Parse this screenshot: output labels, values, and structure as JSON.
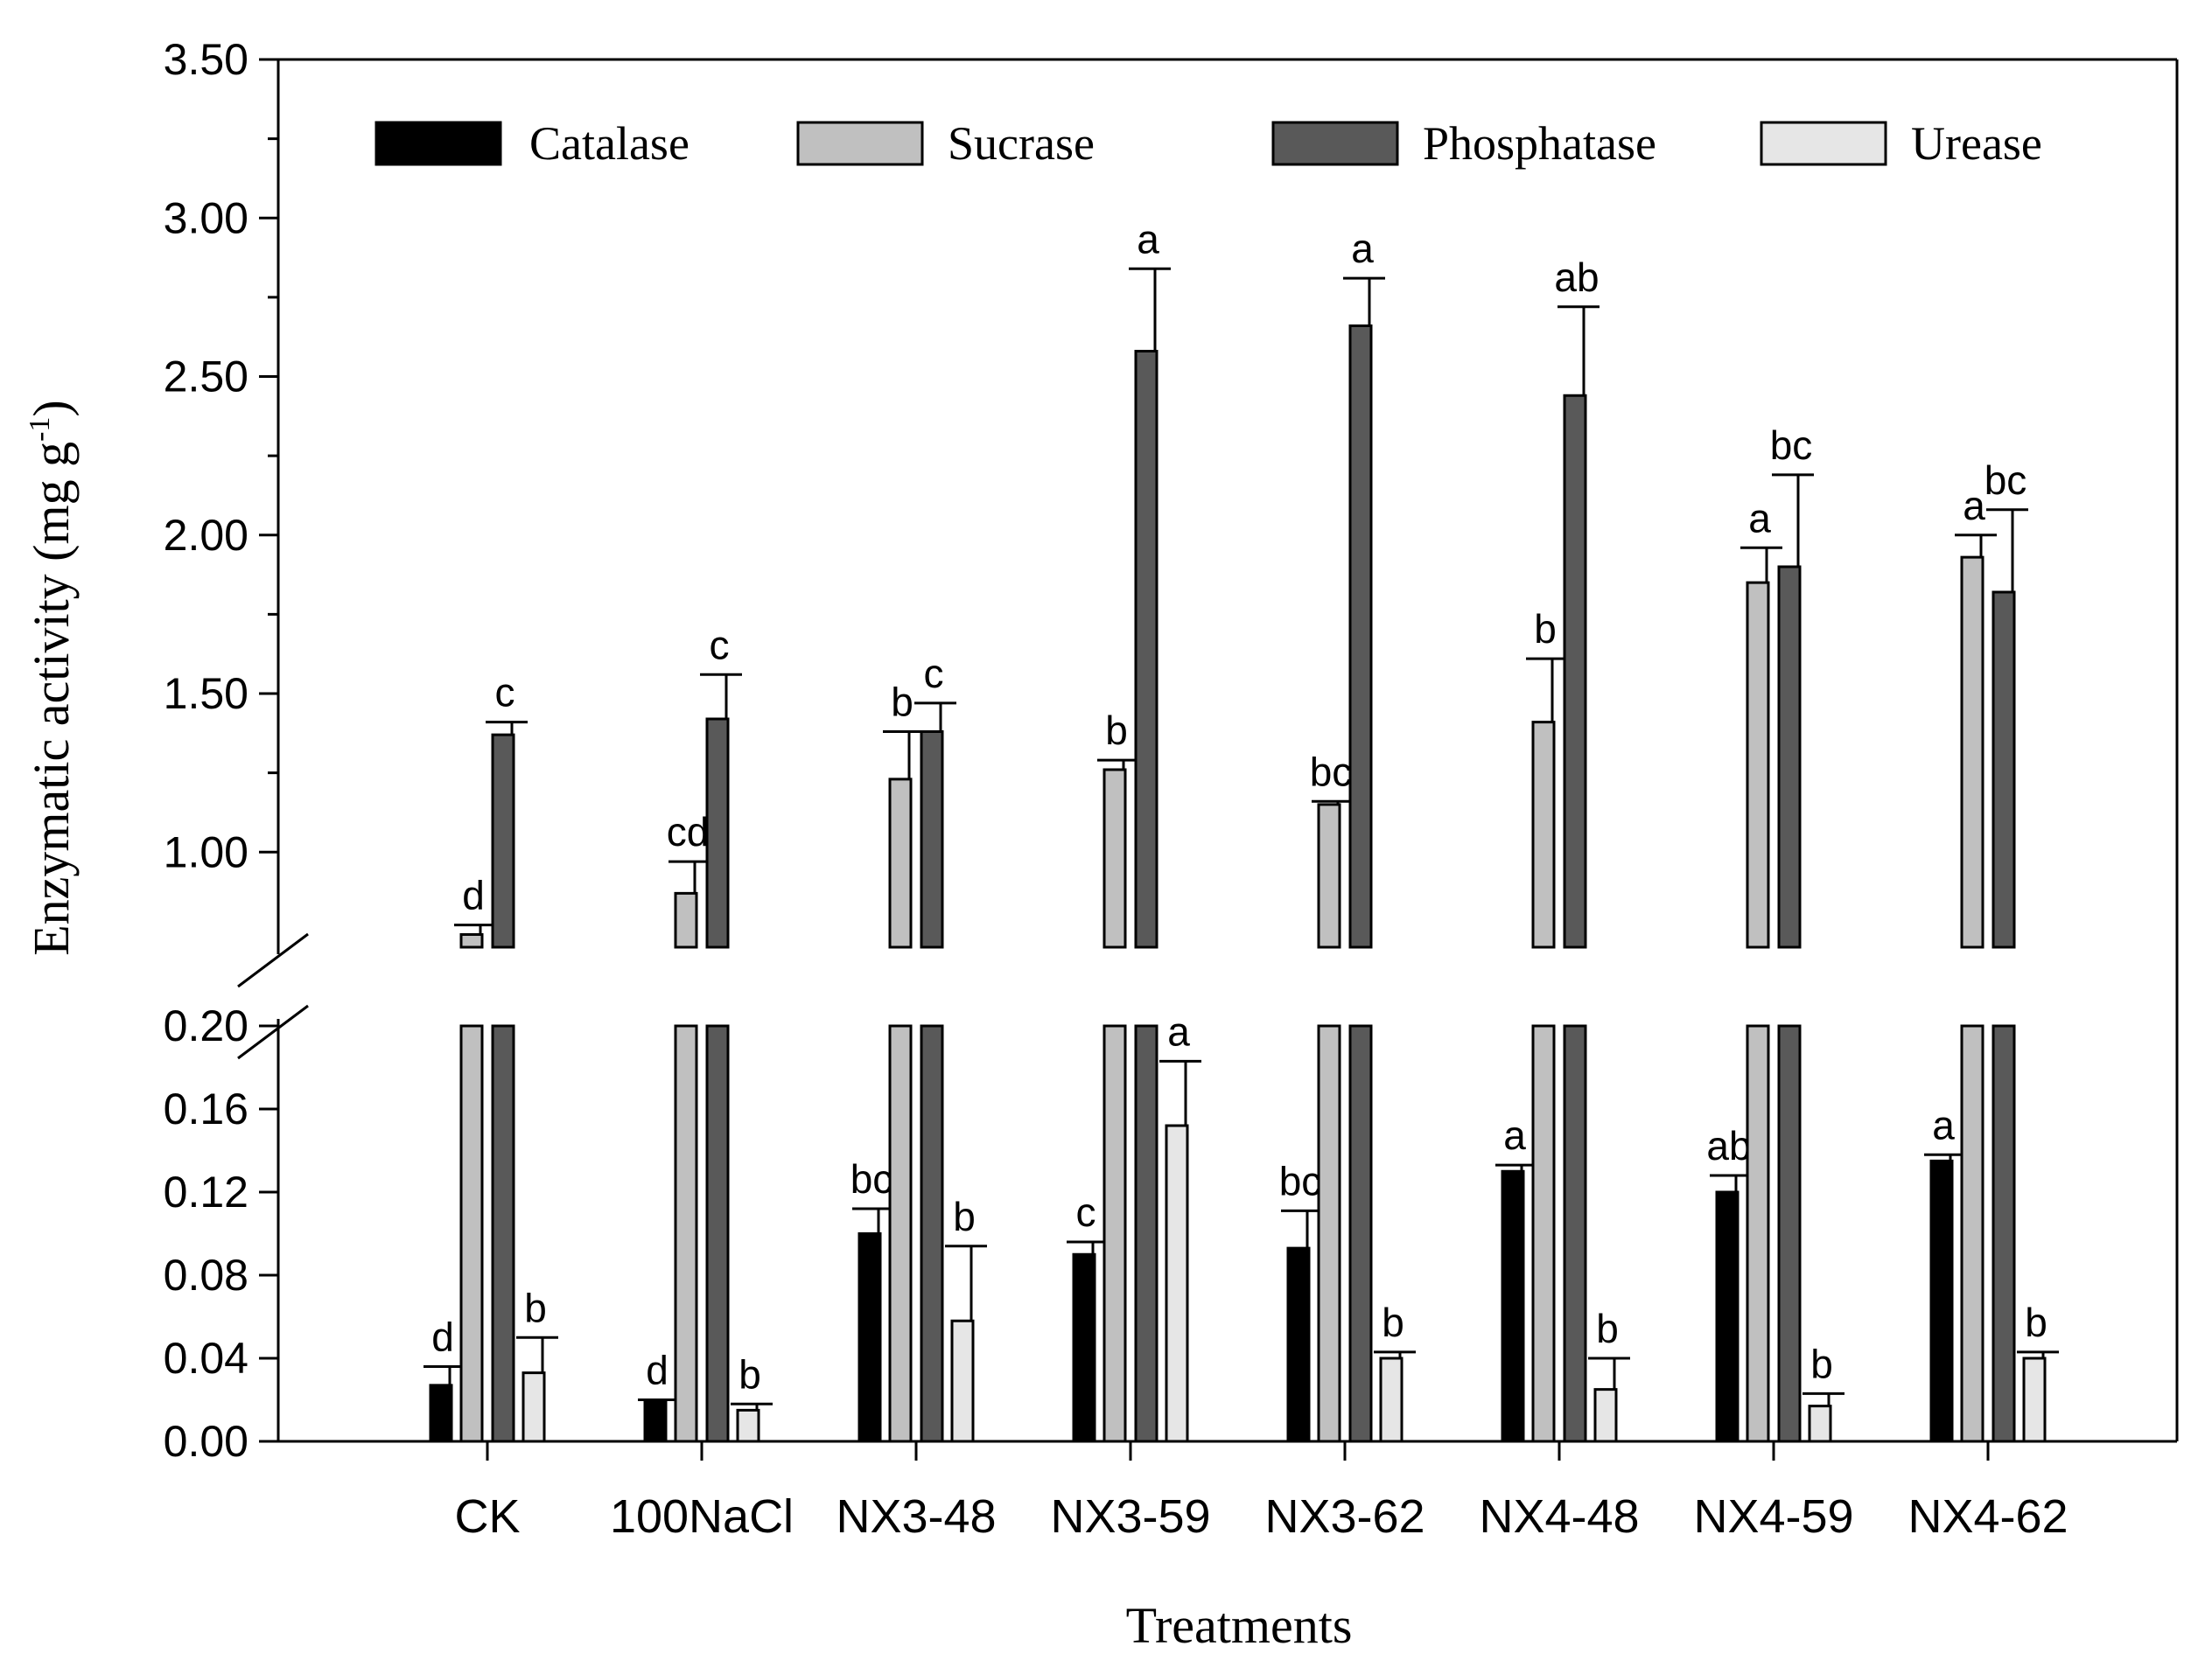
{
  "colors": {
    "Catalase": "#000000",
    "Sucrase": "#c0c0c0",
    "Phosphatase": "#595959",
    "Urease": "#e6e6e6"
  },
  "chart_data": {
    "type": "bar",
    "title": "",
    "xlabel": "Treatments",
    "ylabel": "Enzymatic activity (mg g",
    "ylabel_superscript": "-1",
    "ylabel_close": ")",
    "categories": [
      "CK",
      "100NaCl",
      "NX3-48",
      "NX3-59",
      "NX3-62",
      "NX4-48",
      "NX4-59",
      "NX4-62"
    ],
    "axis_break": {
      "lower_range": [
        0,
        0.2
      ],
      "upper_range": [
        0.7,
        3.5
      ]
    },
    "y_ticks_lower": [
      "0.00",
      "0.04",
      "0.08",
      "0.12",
      "0.16",
      "0.20"
    ],
    "y_ticks_upper": [
      "1.00",
      "1.50",
      "2.00",
      "2.50",
      "3.00",
      "3.50"
    ],
    "legend": [
      "Catalase",
      "Sucrase",
      "Phosphatase",
      "Urease"
    ],
    "series": [
      {
        "name": "Catalase",
        "axis": "lower",
        "values": [
          0.027,
          0.02,
          0.1,
          0.09,
          0.093,
          0.13,
          0.12,
          0.135
        ],
        "errors": [
          0.009,
          0.0,
          0.012,
          0.006,
          0.018,
          0.003,
          0.008,
          0.003
        ],
        "letters": [
          "d",
          "d",
          "bc",
          "c",
          "bc",
          "a",
          "ab",
          "a"
        ]
      },
      {
        "name": "Sucrase",
        "axis": "upper",
        "values": [
          0.74,
          0.87,
          1.23,
          1.26,
          1.15,
          1.41,
          1.85,
          1.93
        ],
        "errors": [
          0.03,
          0.1,
          0.15,
          0.03,
          0.01,
          0.2,
          0.11,
          0.07
        ],
        "letters": [
          "d",
          "cd",
          "b",
          "b",
          "bc",
          "b",
          "a",
          "a"
        ]
      },
      {
        "name": "Phosphatase",
        "axis": "upper",
        "values": [
          1.37,
          1.42,
          1.38,
          2.58,
          2.66,
          2.44,
          1.9,
          1.82
        ],
        "errors": [
          0.04,
          0.14,
          0.09,
          0.26,
          0.15,
          0.28,
          0.29,
          0.26
        ],
        "letters": [
          "c",
          "c",
          "c",
          "a",
          "a",
          "ab",
          "bc",
          "bc"
        ]
      },
      {
        "name": "Urease",
        "axis": "lower",
        "values": [
          0.033,
          0.015,
          0.058,
          0.152,
          0.04,
          0.025,
          0.017,
          0.04
        ],
        "errors": [
          0.017,
          0.003,
          0.036,
          0.031,
          0.003,
          0.015,
          0.006,
          0.003
        ],
        "letters": [
          "b",
          "b",
          "b",
          "a",
          "b",
          "b",
          "b",
          "b"
        ]
      }
    ]
  }
}
